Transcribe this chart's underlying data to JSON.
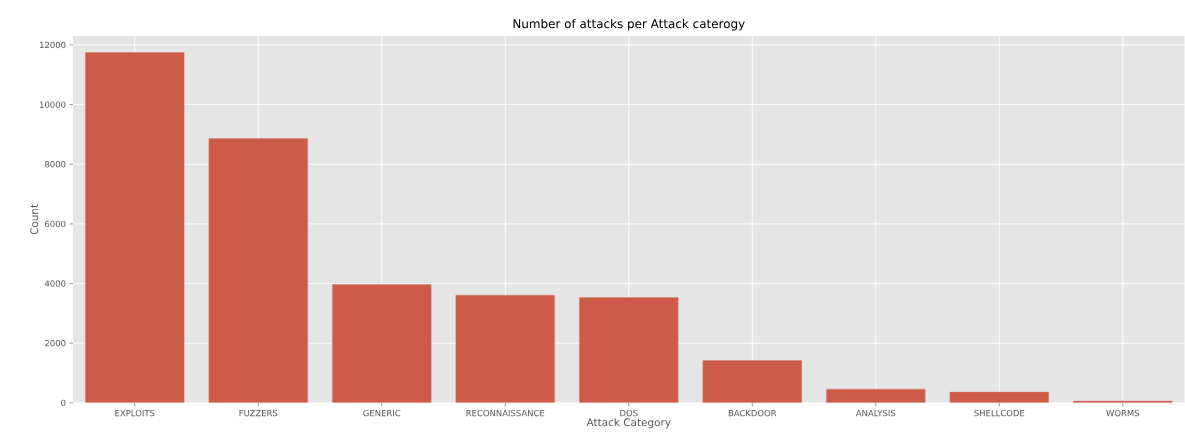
{
  "chart_data": {
    "type": "bar",
    "title": "Number of attacks per Attack caterogy",
    "xlabel": "Attack Category",
    "ylabel": "Count",
    "categories": [
      "EXPLOITS",
      "FUZZERS",
      "GENERIC",
      "RECONNAISSANCE",
      "DOS",
      "BACKDOOR",
      "ANALYSIS",
      "SHELLCODE",
      "WORMS"
    ],
    "values": [
      11750,
      8860,
      3970,
      3610,
      3530,
      1420,
      460,
      360,
      60
    ],
    "color": "#cd5b49",
    "ylim": [
      0,
      12300
    ],
    "yticks": [
      0,
      2000,
      4000,
      6000,
      8000,
      10000,
      12000
    ],
    "grid": true
  }
}
